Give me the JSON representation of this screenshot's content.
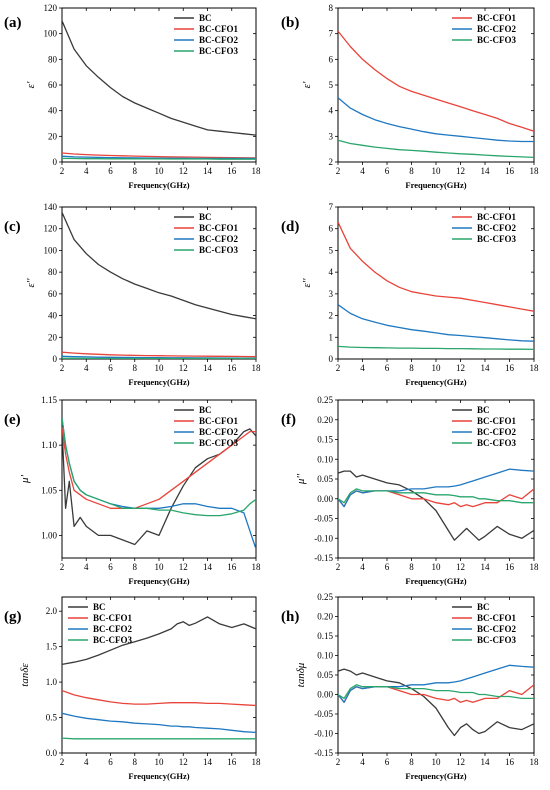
{
  "figure": {
    "xlabel": "Frequency(GHz)",
    "series_names": [
      "BC",
      "BC-CFO1",
      "BC-CFO2",
      "BC-CFO3"
    ],
    "colors": {
      "BC": "#3a3a3a",
      "BC-CFO1": "#e8443a",
      "BC-CFO2": "#1f78c1",
      "BC-CFO3": "#2aa66c"
    }
  },
  "chart_data": [
    {
      "panel": "(a)",
      "type": "line",
      "ylabel": "ε'",
      "xlabel": "Frequency(GHz)",
      "xlim": [
        2,
        18
      ],
      "ylim": [
        0,
        120
      ],
      "xticks": [
        2,
        4,
        6,
        8,
        10,
        12,
        14,
        16,
        18
      ],
      "yticks": [
        0,
        20,
        40,
        60,
        80,
        100,
        120
      ],
      "legend": "top-right",
      "x": [
        2,
        3,
        4,
        5,
        6,
        7,
        8,
        9,
        10,
        11,
        12,
        13,
        14,
        15,
        16,
        17,
        18
      ],
      "series": [
        {
          "name": "BC",
          "values": [
            110,
            88,
            75,
            66,
            58,
            51,
            46,
            42,
            38,
            34,
            31,
            28,
            25,
            24,
            23,
            22,
            21
          ]
        },
        {
          "name": "BC-CFO1",
          "values": [
            7,
            6.2,
            5.8,
            5.4,
            5.1,
            4.8,
            4.6,
            4.4,
            4.2,
            4.0,
            3.9,
            3.8,
            3.6,
            3.5,
            3.4,
            3.3,
            3.2
          ]
        },
        {
          "name": "BC-CFO2",
          "values": [
            4.5,
            4.0,
            3.8,
            3.6,
            3.4,
            3.3,
            3.2,
            3.1,
            3.0,
            2.9,
            2.9,
            2.8,
            2.8,
            2.8,
            2.8,
            2.8,
            2.8
          ]
        },
        {
          "name": "BC-CFO3",
          "values": [
            2.8,
            2.7,
            2.6,
            2.6,
            2.5,
            2.5,
            2.4,
            2.4,
            2.4,
            2.3,
            2.3,
            2.3,
            2.3,
            2.2,
            2.2,
            2.2,
            2.2
          ]
        }
      ]
    },
    {
      "panel": "(b)",
      "type": "line",
      "ylabel": "ε'",
      "xlabel": "Frequency(GHz)",
      "xlim": [
        2,
        18
      ],
      "ylim": [
        2,
        8
      ],
      "xticks": [
        2,
        4,
        6,
        8,
        10,
        12,
        14,
        16,
        18
      ],
      "yticks": [
        2,
        3,
        4,
        5,
        6,
        7,
        8
      ],
      "legend": "top-right",
      "x": [
        2,
        3,
        4,
        5,
        6,
        7,
        8,
        9,
        10,
        11,
        12,
        13,
        14,
        15,
        16,
        17,
        18
      ],
      "series": [
        {
          "name": "BC-CFO1",
          "values": [
            7.1,
            6.5,
            6.0,
            5.6,
            5.25,
            4.95,
            4.75,
            4.6,
            4.45,
            4.3,
            4.15,
            4.0,
            3.85,
            3.7,
            3.5,
            3.35,
            3.2
          ]
        },
        {
          "name": "BC-CFO2",
          "values": [
            4.5,
            4.1,
            3.85,
            3.65,
            3.5,
            3.38,
            3.28,
            3.18,
            3.1,
            3.05,
            3.0,
            2.95,
            2.9,
            2.85,
            2.82,
            2.8,
            2.8
          ]
        },
        {
          "name": "BC-CFO3",
          "values": [
            2.85,
            2.72,
            2.65,
            2.58,
            2.53,
            2.48,
            2.45,
            2.42,
            2.38,
            2.35,
            2.32,
            2.3,
            2.27,
            2.24,
            2.22,
            2.2,
            2.18
          ]
        }
      ]
    },
    {
      "panel": "(c)",
      "type": "line",
      "ylabel": "ε''",
      "xlabel": "Frequency(GHz)",
      "xlim": [
        2,
        18
      ],
      "ylim": [
        0,
        140
      ],
      "xticks": [
        2,
        4,
        6,
        8,
        10,
        12,
        14,
        16,
        18
      ],
      "yticks": [
        0,
        20,
        40,
        60,
        80,
        100,
        120,
        140
      ],
      "legend": "top-right",
      "x": [
        2,
        3,
        4,
        5,
        6,
        7,
        8,
        9,
        10,
        11,
        12,
        13,
        14,
        15,
        16,
        17,
        18
      ],
      "series": [
        {
          "name": "BC",
          "values": [
            135,
            110,
            97,
            87,
            80,
            74,
            69,
            65,
            61,
            58,
            54,
            50,
            47,
            44,
            41,
            39,
            37
          ]
        },
        {
          "name": "BC-CFO1",
          "values": [
            6.3,
            5.4,
            4.8,
            4.3,
            3.9,
            3.6,
            3.3,
            3.1,
            3.0,
            2.9,
            2.8,
            2.7,
            2.6,
            2.5,
            2.4,
            2.3,
            2.2
          ]
        },
        {
          "name": "BC-CFO2",
          "values": [
            2.5,
            2.1,
            1.9,
            1.7,
            1.6,
            1.5,
            1.4,
            1.3,
            1.2,
            1.1,
            1.1,
            1.0,
            1.0,
            0.9,
            0.9,
            0.8,
            0.8
          ]
        },
        {
          "name": "BC-CFO3",
          "values": [
            0.6,
            0.55,
            0.55,
            0.5,
            0.5,
            0.5,
            0.5,
            0.5,
            0.5,
            0.5,
            0.5,
            0.5,
            0.5,
            0.5,
            0.45,
            0.45,
            0.45
          ]
        }
      ]
    },
    {
      "panel": "(d)",
      "type": "line",
      "ylabel": "ε''",
      "xlabel": "Frequency(GHz)",
      "xlim": [
        2,
        18
      ],
      "ylim": [
        0,
        7
      ],
      "xticks": [
        2,
        4,
        6,
        8,
        10,
        12,
        14,
        16,
        18
      ],
      "yticks": [
        0,
        1,
        2,
        3,
        4,
        5,
        6,
        7
      ],
      "legend": "top-right",
      "x": [
        2,
        3,
        4,
        5,
        6,
        7,
        8,
        9,
        10,
        11,
        12,
        13,
        14,
        15,
        16,
        17,
        18
      ],
      "series": [
        {
          "name": "BC-CFO1",
          "values": [
            6.3,
            5.1,
            4.5,
            4.0,
            3.6,
            3.3,
            3.1,
            3.0,
            2.9,
            2.85,
            2.8,
            2.7,
            2.6,
            2.5,
            2.4,
            2.3,
            2.2
          ]
        },
        {
          "name": "BC-CFO2",
          "values": [
            2.5,
            2.1,
            1.85,
            1.7,
            1.55,
            1.45,
            1.35,
            1.28,
            1.2,
            1.12,
            1.08,
            1.03,
            0.98,
            0.93,
            0.88,
            0.84,
            0.82
          ]
        },
        {
          "name": "BC-CFO3",
          "values": [
            0.58,
            0.55,
            0.53,
            0.52,
            0.51,
            0.5,
            0.5,
            0.49,
            0.49,
            0.48,
            0.48,
            0.47,
            0.46,
            0.46,
            0.45,
            0.45,
            0.44
          ]
        }
      ]
    },
    {
      "panel": "(e)",
      "type": "line",
      "ylabel": "μ'",
      "xlabel": "Frequency(GHz)",
      "xlim": [
        2,
        18
      ],
      "ylim": [
        0.975,
        1.15
      ],
      "xticks": [
        2,
        4,
        6,
        8,
        10,
        12,
        14,
        16,
        18
      ],
      "yticks": [
        1.0,
        1.05,
        1.1,
        1.15
      ],
      "yticklabels": [
        "1.00",
        "1.05",
        "1.10",
        "1.15"
      ],
      "legend": "top-right",
      "x": [
        2,
        2.3,
        2.6,
        3,
        3.5,
        4,
        5,
        6,
        7,
        8,
        9,
        10,
        11,
        12,
        13,
        14,
        15,
        16,
        17,
        17.5,
        18
      ],
      "series": [
        {
          "name": "BC",
          "values": [
            1.12,
            1.03,
            1.06,
            1.01,
            1.02,
            1.01,
            1.0,
            1.0,
            0.995,
            0.99,
            1.005,
            1.0,
            1.03,
            1.055,
            1.075,
            1.085,
            1.09,
            1.1,
            1.115,
            1.118,
            1.11
          ]
        },
        {
          "name": "BC-CFO1",
          "values": [
            1.12,
            1.09,
            1.07,
            1.05,
            1.045,
            1.04,
            1.035,
            1.03,
            1.03,
            1.03,
            1.035,
            1.04,
            1.05,
            1.06,
            1.07,
            1.08,
            1.09,
            1.1,
            1.11,
            1.115,
            1.115
          ]
        },
        {
          "name": "BC-CFO2",
          "values": [
            1.13,
            1.1,
            1.08,
            1.06,
            1.05,
            1.045,
            1.04,
            1.035,
            1.032,
            1.03,
            1.03,
            1.03,
            1.032,
            1.035,
            1.035,
            1.032,
            1.03,
            1.03,
            1.025,
            1.005,
            0.985
          ]
        },
        {
          "name": "BC-CFO3",
          "values": [
            1.13,
            1.1,
            1.08,
            1.06,
            1.05,
            1.045,
            1.04,
            1.035,
            1.03,
            1.03,
            1.03,
            1.028,
            1.028,
            1.025,
            1.023,
            1.022,
            1.022,
            1.024,
            1.028,
            1.035,
            1.04
          ]
        }
      ]
    },
    {
      "panel": "(f)",
      "type": "line",
      "ylabel": "μ''",
      "xlabel": "Frequency(GHz)",
      "xlim": [
        2,
        18
      ],
      "ylim": [
        -0.15,
        0.25
      ],
      "xticks": [
        2,
        4,
        6,
        8,
        10,
        12,
        14,
        16,
        18
      ],
      "yticks": [
        -0.15,
        -0.1,
        -0.05,
        0.0,
        0.05,
        0.1,
        0.15,
        0.2,
        0.25
      ],
      "yticklabels": [
        "-0.15",
        "-0.10",
        "-0.05",
        "0.00",
        "0.05",
        "0.10",
        "0.15",
        "0.20",
        "0.25"
      ],
      "legend": "top-right",
      "x": [
        2,
        2.5,
        3,
        3.5,
        4,
        5,
        6,
        7,
        8,
        9,
        10,
        11,
        11.5,
        12,
        12.5,
        13,
        13.5,
        14,
        15,
        16,
        17,
        18
      ],
      "series": [
        {
          "name": "BC",
          "values": [
            0.065,
            0.07,
            0.07,
            0.055,
            0.06,
            0.05,
            0.04,
            0.035,
            0.02,
            0.0,
            -0.03,
            -0.08,
            -0.105,
            -0.09,
            -0.075,
            -0.09,
            -0.105,
            -0.095,
            -0.07,
            -0.09,
            -0.1,
            -0.08
          ]
        },
        {
          "name": "BC-CFO1",
          "values": [
            0.0,
            -0.02,
            0.01,
            0.02,
            0.015,
            0.02,
            0.02,
            0.01,
            0.0,
            0.0,
            -0.01,
            -0.015,
            -0.01,
            -0.02,
            -0.015,
            -0.02,
            -0.015,
            -0.01,
            -0.01,
            0.01,
            0.0,
            0.025
          ]
        },
        {
          "name": "BC-CFO2",
          "values": [
            0.0,
            -0.02,
            0.01,
            0.02,
            0.015,
            0.02,
            0.02,
            0.02,
            0.025,
            0.025,
            0.03,
            0.03,
            0.032,
            0.035,
            0.04,
            0.045,
            0.05,
            0.055,
            0.065,
            0.075,
            0.072,
            0.07
          ]
        },
        {
          "name": "BC-CFO3",
          "values": [
            0.0,
            -0.01,
            0.015,
            0.025,
            0.02,
            0.02,
            0.02,
            0.015,
            0.015,
            0.015,
            0.01,
            0.01,
            0.008,
            0.005,
            0.005,
            0.005,
            0.0,
            0.0,
            -0.005,
            -0.005,
            -0.01,
            -0.01
          ]
        }
      ]
    },
    {
      "panel": "(g)",
      "type": "line",
      "ylabel": "tanδε",
      "xlabel": "Frequency(GHz)",
      "xlim": [
        2,
        18
      ],
      "ylim": [
        0,
        2.2
      ],
      "xticks": [
        2,
        4,
        6,
        8,
        10,
        12,
        14,
        16,
        18
      ],
      "yticks": [
        0.0,
        0.5,
        1.0,
        1.5,
        2.0
      ],
      "yticklabels": [
        "0.0",
        "0.5",
        "1.0",
        "1.5",
        "2.0"
      ],
      "legend": "top-left",
      "x": [
        2,
        3,
        4,
        5,
        6,
        7,
        8,
        9,
        10,
        11,
        11.5,
        12,
        12.5,
        13,
        14,
        15,
        16,
        17,
        18
      ],
      "series": [
        {
          "name": "BC",
          "values": [
            1.25,
            1.28,
            1.32,
            1.38,
            1.45,
            1.52,
            1.57,
            1.62,
            1.68,
            1.75,
            1.82,
            1.85,
            1.8,
            1.83,
            1.92,
            1.82,
            1.77,
            1.82,
            1.75
          ]
        },
        {
          "name": "BC-CFO1",
          "values": [
            0.88,
            0.82,
            0.78,
            0.75,
            0.72,
            0.7,
            0.69,
            0.69,
            0.7,
            0.71,
            0.71,
            0.71,
            0.71,
            0.71,
            0.7,
            0.7,
            0.69,
            0.68,
            0.67
          ]
        },
        {
          "name": "BC-CFO2",
          "values": [
            0.56,
            0.52,
            0.49,
            0.47,
            0.45,
            0.44,
            0.42,
            0.41,
            0.4,
            0.38,
            0.38,
            0.37,
            0.37,
            0.36,
            0.35,
            0.34,
            0.32,
            0.3,
            0.29
          ]
        },
        {
          "name": "BC-CFO3",
          "values": [
            0.21,
            0.2,
            0.2,
            0.2,
            0.2,
            0.2,
            0.2,
            0.2,
            0.2,
            0.2,
            0.2,
            0.2,
            0.2,
            0.2,
            0.2,
            0.2,
            0.2,
            0.2,
            0.2
          ]
        }
      ]
    },
    {
      "panel": "(h)",
      "type": "line",
      "ylabel": "tanδμ",
      "xlabel": "Frequency(GHz)",
      "xlim": [
        2,
        18
      ],
      "ylim": [
        -0.15,
        0.25
      ],
      "xticks": [
        2,
        4,
        6,
        8,
        10,
        12,
        14,
        16,
        18
      ],
      "yticks": [
        -0.15,
        -0.1,
        -0.05,
        0.0,
        0.05,
        0.1,
        0.15,
        0.2,
        0.25
      ],
      "yticklabels": [
        "-0.15",
        "-0.10",
        "-0.05",
        "0.00",
        "0.05",
        "0.10",
        "0.15",
        "0.20",
        "0.25"
      ],
      "legend": "top-right",
      "x": [
        2,
        2.5,
        3,
        3.5,
        4,
        5,
        6,
        7,
        8,
        9,
        10,
        11,
        11.5,
        12,
        12.5,
        13,
        13.5,
        14,
        15,
        16,
        17,
        18
      ],
      "series": [
        {
          "name": "BC",
          "values": [
            0.06,
            0.065,
            0.06,
            0.05,
            0.055,
            0.045,
            0.035,
            0.03,
            0.015,
            -0.005,
            -0.035,
            -0.085,
            -0.105,
            -0.085,
            -0.075,
            -0.09,
            -0.1,
            -0.095,
            -0.07,
            -0.085,
            -0.09,
            -0.075
          ]
        },
        {
          "name": "BC-CFO1",
          "values": [
            0.0,
            -0.02,
            0.01,
            0.02,
            0.015,
            0.02,
            0.02,
            0.01,
            0.0,
            0.0,
            -0.01,
            -0.015,
            -0.01,
            -0.02,
            -0.015,
            -0.02,
            -0.015,
            -0.01,
            -0.01,
            0.01,
            0.0,
            0.025
          ]
        },
        {
          "name": "BC-CFO2",
          "values": [
            0.0,
            -0.02,
            0.01,
            0.02,
            0.015,
            0.02,
            0.02,
            0.02,
            0.025,
            0.025,
            0.03,
            0.03,
            0.032,
            0.035,
            0.04,
            0.045,
            0.05,
            0.055,
            0.065,
            0.075,
            0.072,
            0.07
          ]
        },
        {
          "name": "BC-CFO3",
          "values": [
            0.0,
            -0.01,
            0.015,
            0.025,
            0.02,
            0.02,
            0.02,
            0.015,
            0.015,
            0.015,
            0.01,
            0.01,
            0.008,
            0.005,
            0.005,
            0.005,
            0.0,
            0.0,
            -0.005,
            -0.005,
            -0.01,
            -0.01
          ]
        }
      ]
    }
  ]
}
